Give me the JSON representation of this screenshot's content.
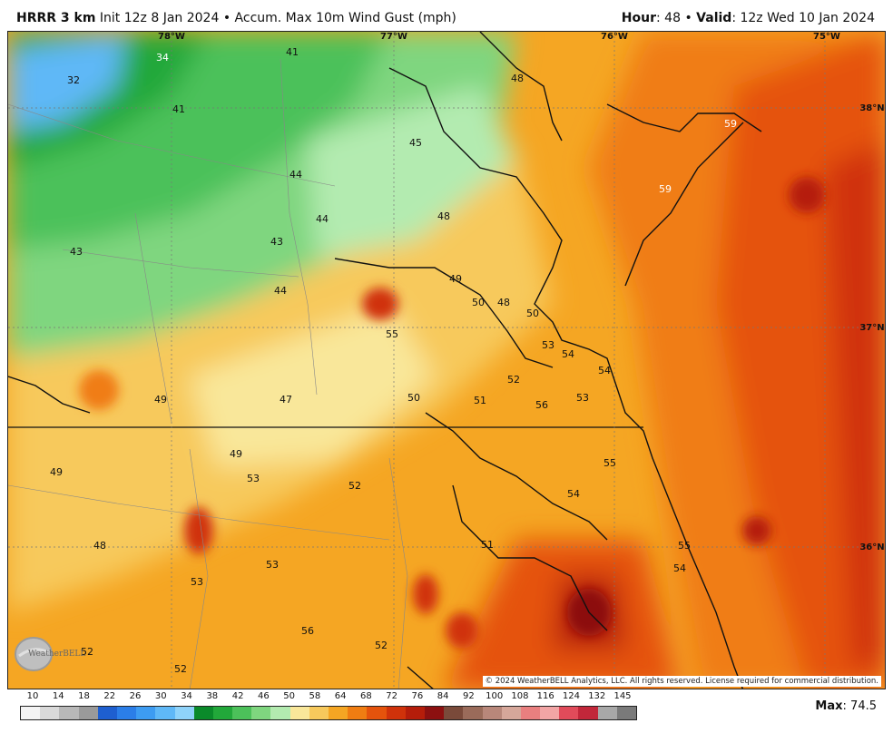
{
  "header": {
    "model": "HRRR 3 km",
    "init": "Init 12z 8 Jan 2024",
    "product": "Accum. Max 10m Wind Gust (mph)",
    "hour_label": "Hour",
    "hour_value": ": 48",
    "valid_label": "Valid",
    "valid_value": ": 12z Wed 10 Jan 2024"
  },
  "axes": {
    "lon_labels": [
      "78°W",
      "77°W",
      "76°W",
      "75°W"
    ],
    "lat_labels": [
      "38°N",
      "37°N",
      "36°N"
    ]
  },
  "point_labels": [
    "41",
    "34",
    "32",
    "41",
    "45",
    "48",
    "44",
    "44",
    "43",
    "48",
    "43",
    "44",
    "49",
    "50",
    "48",
    "50",
    "55",
    "53",
    "54",
    "54",
    "52",
    "49",
    "47",
    "50",
    "51",
    "56",
    "53",
    "59",
    "59",
    "49",
    "49",
    "53",
    "52",
    "55",
    "48",
    "54",
    "51",
    "53",
    "53",
    "55",
    "54",
    "56",
    "52",
    "52",
    "52"
  ],
  "copyright": "© 2024 WeatherBELL Analytics, LLC. All rights reserved. License required for commercial distribution.",
  "logo_text": "WeatherBELL",
  "scale": {
    "ticks": [
      "10",
      "14",
      "18",
      "22",
      "26",
      "30",
      "34",
      "38",
      "42",
      "46",
      "50",
      "58",
      "64",
      "68",
      "72",
      "76",
      "84",
      "92",
      "100",
      "108",
      "116",
      "124",
      "132",
      "145"
    ],
    "colors": [
      "#f4f4f4",
      "#d9d9d9",
      "#b8b8b8",
      "#9a9a9a",
      "#1e5fd0",
      "#2b7ee8",
      "#3d9cf2",
      "#5fb8f7",
      "#8fd3fa",
      "#0a8a2a",
      "#22a83a",
      "#4cc15a",
      "#7fd67f",
      "#b3ebb0",
      "#f9e79a",
      "#f7c95c",
      "#f5a623",
      "#f07d12",
      "#e5530c",
      "#d0320a",
      "#b51d0a",
      "#8c1010",
      "#7a4a3a",
      "#9a6b5a",
      "#b8877a",
      "#d6a79a",
      "#e97f7f",
      "#f2a5a5",
      "#e14b5a",
      "#c2273a",
      "#a8a8a8",
      "#7a7a7a"
    ]
  },
  "max_label": "Max",
  "max_value": ": 74.5"
}
